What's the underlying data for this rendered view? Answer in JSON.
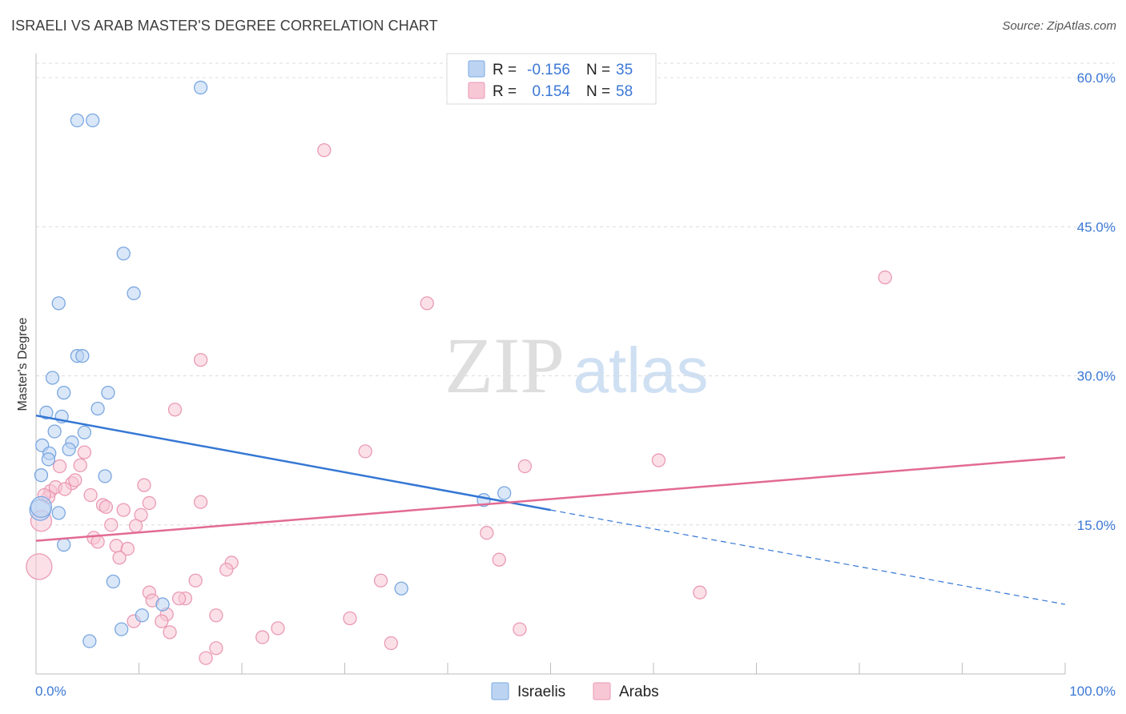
{
  "header": {
    "title": "ISRAELI VS ARAB MASTER'S DEGREE CORRELATION CHART",
    "source": "Source: ZipAtlas.com"
  },
  "watermark": {
    "zip": "ZIP",
    "atlas": "atlas"
  },
  "colors": {
    "israelis_fill": "#bcd4f2",
    "israelis_stroke": "#7aa7e0",
    "israelis_line": "#3577d4",
    "arabs_fill": "#f8c7d6",
    "arabs_stroke": "#ea9ab4",
    "arabs_line": "#e26a93",
    "tick_text": "#3b78d6",
    "grid": "#dcdcdc"
  },
  "legend": {
    "rows": [
      {
        "r_label": "R =",
        "r_value": "-0.156",
        "n_label": "N =",
        "n_value": "35"
      },
      {
        "r_label": "R =",
        "r_value": "0.154",
        "n_label": "N =",
        "n_value": "58"
      }
    ]
  },
  "chart_data": {
    "type": "scatter",
    "title": "ISRAELI VS ARAB MASTER'S DEGREE CORRELATION CHART",
    "xlabel": "",
    "ylabel": "Master's Degree",
    "xlim": [
      0,
      100
    ],
    "ylim": [
      0,
      60
    ],
    "x_tick_labels": [
      "0.0%",
      "100.0%"
    ],
    "y_ticks": [
      15,
      30,
      45,
      60
    ],
    "y_tick_labels": [
      "15.0%",
      "30.0%",
      "45.0%",
      "60.0%"
    ],
    "grid": true,
    "series": [
      {
        "name": "Israelis",
        "r": -0.156,
        "n": 35,
        "trend": {
          "x0": 0,
          "y0": 26.0,
          "x1": 50,
          "y1": 16.5,
          "dashed_to_x": 100,
          "dashed_to_y": 7.0
        },
        "points": [
          {
            "x": 16,
            "y": 59.0
          },
          {
            "x": 4,
            "y": 55.7
          },
          {
            "x": 5.5,
            "y": 55.7
          },
          {
            "x": 8.5,
            "y": 42.3
          },
          {
            "x": 9.5,
            "y": 38.3
          },
          {
            "x": 2.2,
            "y": 37.3
          },
          {
            "x": 4,
            "y": 32.0
          },
          {
            "x": 4.5,
            "y": 32.0
          },
          {
            "x": 1.6,
            "y": 29.8
          },
          {
            "x": 2.7,
            "y": 28.3
          },
          {
            "x": 7,
            "y": 28.3
          },
          {
            "x": 6,
            "y": 26.7
          },
          {
            "x": 1,
            "y": 26.3
          },
          {
            "x": 2.5,
            "y": 25.9
          },
          {
            "x": 1.8,
            "y": 24.4
          },
          {
            "x": 4.7,
            "y": 24.3
          },
          {
            "x": 3.5,
            "y": 23.3
          },
          {
            "x": 0.6,
            "y": 23.0
          },
          {
            "x": 3.2,
            "y": 22.6
          },
          {
            "x": 1.3,
            "y": 22.2
          },
          {
            "x": 1.2,
            "y": 21.6
          },
          {
            "x": 0.5,
            "y": 20.0
          },
          {
            "x": 6.7,
            "y": 19.9
          },
          {
            "x": 45.5,
            "y": 18.2
          },
          {
            "x": 43.5,
            "y": 17.5
          },
          {
            "x": 0.4,
            "y": 16.5
          },
          {
            "x": 2.2,
            "y": 16.2
          },
          {
            "x": 2.7,
            "y": 13.0
          },
          {
            "x": 7.5,
            "y": 9.3
          },
          {
            "x": 35.5,
            "y": 8.6
          },
          {
            "x": 12.3,
            "y": 7.0
          },
          {
            "x": 10.3,
            "y": 5.9
          },
          {
            "x": 8.3,
            "y": 4.5
          },
          {
            "x": 5.2,
            "y": 3.3
          },
          {
            "x": 0.5,
            "y": 16.8
          }
        ]
      },
      {
        "name": "Arabs",
        "r": 0.154,
        "n": 58,
        "trend": {
          "x0": 0,
          "y0": 13.4,
          "x1": 100,
          "y1": 21.8
        },
        "points": [
          {
            "x": 28,
            "y": 52.7
          },
          {
            "x": 82.5,
            "y": 39.9
          },
          {
            "x": 38,
            "y": 37.3
          },
          {
            "x": 16,
            "y": 31.6
          },
          {
            "x": 13.5,
            "y": 26.6
          },
          {
            "x": 32,
            "y": 22.4
          },
          {
            "x": 4.7,
            "y": 22.3
          },
          {
            "x": 60.5,
            "y": 21.5
          },
          {
            "x": 47.5,
            "y": 20.9
          },
          {
            "x": 2.3,
            "y": 20.9
          },
          {
            "x": 4.3,
            "y": 21.0
          },
          {
            "x": 1.4,
            "y": 18.4
          },
          {
            "x": 1.9,
            "y": 18.8
          },
          {
            "x": 3.5,
            "y": 19.2
          },
          {
            "x": 2.8,
            "y": 18.6
          },
          {
            "x": 3.8,
            "y": 19.5
          },
          {
            "x": 10.5,
            "y": 19.0
          },
          {
            "x": 5.3,
            "y": 18.0
          },
          {
            "x": 1.2,
            "y": 17.8
          },
          {
            "x": 6.5,
            "y": 17.0
          },
          {
            "x": 11,
            "y": 17.2
          },
          {
            "x": 16,
            "y": 17.3
          },
          {
            "x": 6.8,
            "y": 16.8
          },
          {
            "x": 8.5,
            "y": 16.5
          },
          {
            "x": 10.2,
            "y": 16.0
          },
          {
            "x": 7.3,
            "y": 15.0
          },
          {
            "x": 9.7,
            "y": 14.9
          },
          {
            "x": 0.5,
            "y": 15.4
          },
          {
            "x": 43.8,
            "y": 14.2
          },
          {
            "x": 5.6,
            "y": 13.7
          },
          {
            "x": 6,
            "y": 13.3
          },
          {
            "x": 7.8,
            "y": 12.9
          },
          {
            "x": 8.9,
            "y": 12.6
          },
          {
            "x": 8.1,
            "y": 11.7
          },
          {
            "x": 45,
            "y": 11.5
          },
          {
            "x": 19,
            "y": 11.2
          },
          {
            "x": 18.5,
            "y": 10.5
          },
          {
            "x": 0.3,
            "y": 10.8
          },
          {
            "x": 15.5,
            "y": 9.4
          },
          {
            "x": 33.5,
            "y": 9.4
          },
          {
            "x": 11,
            "y": 8.2
          },
          {
            "x": 64.5,
            "y": 8.2
          },
          {
            "x": 14.5,
            "y": 7.6
          },
          {
            "x": 11.3,
            "y": 7.4
          },
          {
            "x": 13.9,
            "y": 7.6
          },
          {
            "x": 12.7,
            "y": 6.0
          },
          {
            "x": 17.5,
            "y": 5.9
          },
          {
            "x": 30.5,
            "y": 5.6
          },
          {
            "x": 12.2,
            "y": 5.3
          },
          {
            "x": 9.5,
            "y": 5.3
          },
          {
            "x": 23.5,
            "y": 4.6
          },
          {
            "x": 47,
            "y": 4.5
          },
          {
            "x": 13,
            "y": 4.2
          },
          {
            "x": 22,
            "y": 3.7
          },
          {
            "x": 34.5,
            "y": 3.1
          },
          {
            "x": 17.5,
            "y": 2.6
          },
          {
            "x": 16.5,
            "y": 1.6
          },
          {
            "x": 0.8,
            "y": 18.0
          }
        ]
      }
    ]
  }
}
